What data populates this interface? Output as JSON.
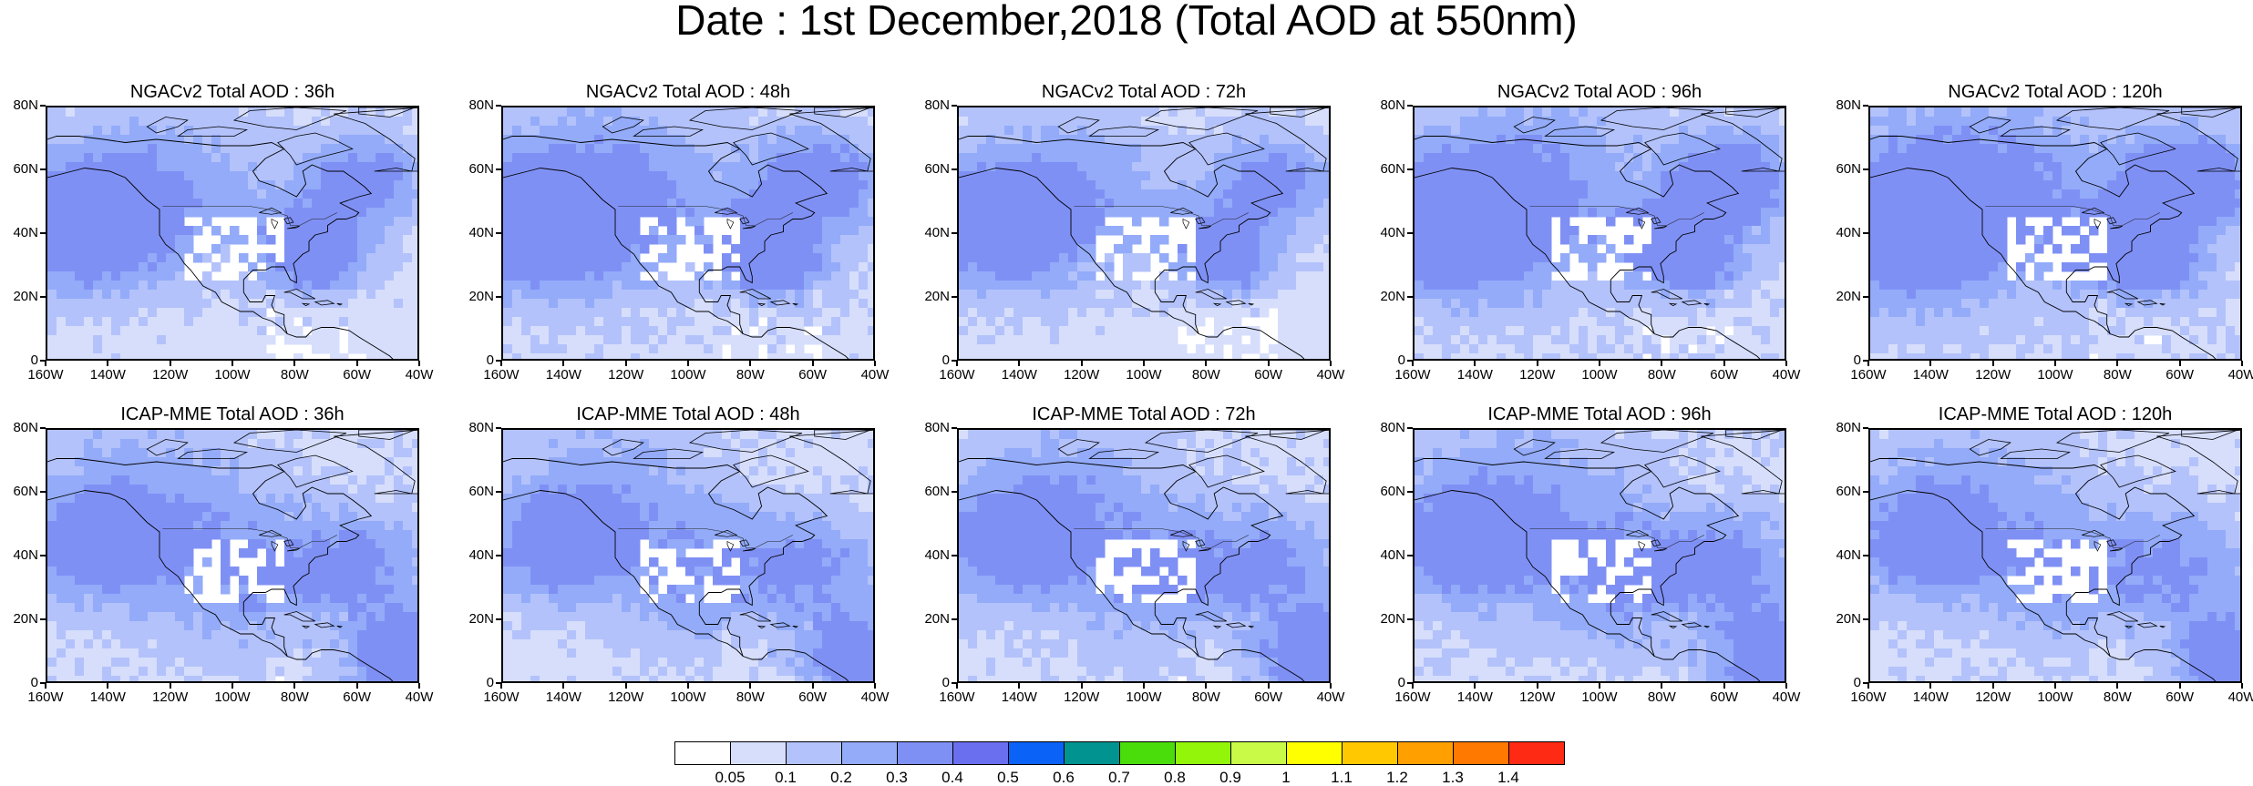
{
  "title": "Date : 1st December,2018 (Total AOD at 550nm)",
  "panels": [
    {
      "title": "NGACv2 Total AOD : 36h",
      "model": "NGAC",
      "intensity": 0.9
    },
    {
      "title": "NGACv2 Total AOD : 48h",
      "model": "NGAC",
      "intensity": 1.0
    },
    {
      "title": "NGACv2 Total AOD : 72h",
      "model": "NGAC",
      "intensity": 0.85
    },
    {
      "title": "NGACv2 Total AOD : 96h",
      "model": "NGAC",
      "intensity": 1.05
    },
    {
      "title": "NGACv2 Total AOD : 120h",
      "model": "NGAC",
      "intensity": 1.15
    },
    {
      "title": "ICAP-MME Total AOD : 36h",
      "model": "ICAP",
      "intensity": 1.0
    },
    {
      "title": "ICAP-MME Total AOD : 48h",
      "model": "ICAP",
      "intensity": 0.95
    },
    {
      "title": "ICAP-MME Total AOD : 72h",
      "model": "ICAP",
      "intensity": 1.0
    },
    {
      "title": "ICAP-MME Total AOD : 96h",
      "model": "ICAP",
      "intensity": 1.05
    },
    {
      "title": "ICAP-MME Total AOD : 120h",
      "model": "ICAP",
      "intensity": 0.95
    }
  ],
  "y_axis_labels": [
    "80N",
    "60N",
    "40N",
    "20N",
    "0"
  ],
  "x_axis_labels": [
    "160W",
    "140W",
    "120W",
    "100W",
    "80W",
    "60W",
    "40W"
  ],
  "colorbar": {
    "colors": [
      "#ffffff",
      "#d6defc",
      "#b3c2fb",
      "#93abf9",
      "#7f90f5",
      "#6a6ff0",
      "#0b62f6",
      "#00938f",
      "#4bdd0b",
      "#93f50a",
      "#c8fa47",
      "#ffff00",
      "#ffc800",
      "#ffa000",
      "#ff7800",
      "#ff2a14"
    ],
    "labels": [
      "0.05",
      "0.1",
      "0.2",
      "0.3",
      "0.4",
      "0.5",
      "0.6",
      "0.7",
      "0.8",
      "0.9",
      "1",
      "1.1",
      "1.2",
      "1.3",
      "1.4"
    ]
  }
}
